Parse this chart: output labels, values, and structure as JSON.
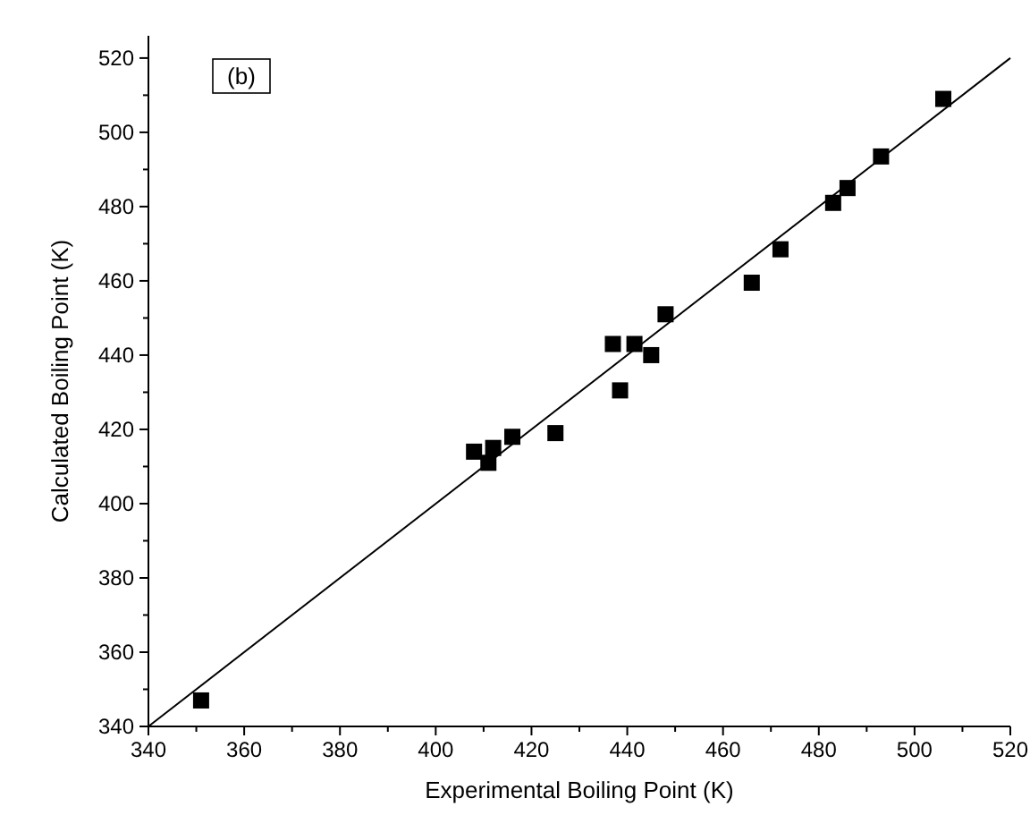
{
  "chart_data": {
    "type": "scatter",
    "xlabel": "Experimental Boiling Point (K)",
    "ylabel": "Calculated Boiling Point (K)",
    "annotations": [
      "(b)"
    ],
    "xlim": [
      340,
      520
    ],
    "ylim": [
      340,
      526
    ],
    "xticks": [
      340,
      360,
      380,
      400,
      420,
      440,
      460,
      480,
      500,
      520
    ],
    "yticks": [
      340,
      360,
      380,
      400,
      420,
      440,
      460,
      480,
      500,
      520
    ],
    "grid": false,
    "marker": "square",
    "series": [
      {
        "color": "#000000",
        "x": [
          351,
          408,
          411,
          412,
          416,
          425,
          437,
          438.5,
          441.5,
          445,
          448,
          466,
          472,
          483,
          486,
          493,
          506
        ],
        "values": [
          347,
          414,
          411,
          415,
          418,
          419,
          443,
          430.5,
          443,
          440,
          451,
          459.5,
          468.5,
          481,
          485,
          493.5,
          509
        ]
      },
      {
        "type": "line",
        "color": "#000000",
        "marker": "none",
        "line_style": "solid",
        "x": [
          340,
          520
        ],
        "values": [
          340,
          520
        ]
      }
    ]
  }
}
